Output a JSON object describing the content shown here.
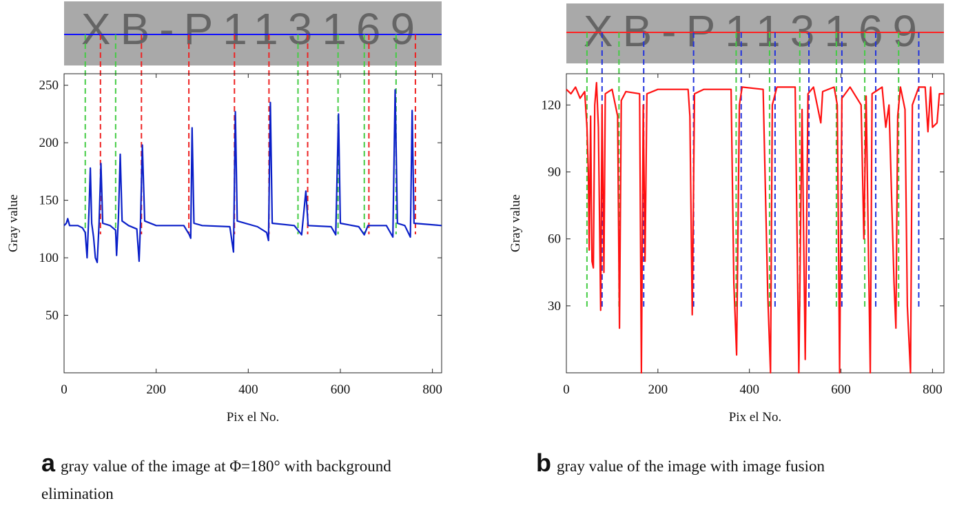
{
  "chart_data": [
    {
      "type": "line",
      "caption_label": "a",
      "caption": "gray value of the image at Φ=180° with background elimination",
      "xlabel": "Pix el No.",
      "ylabel": "Gray value",
      "color": "#0a1fc8",
      "xlim": [
        0,
        820
      ],
      "ylim": [
        0,
        260
      ],
      "xticks": [
        0,
        200,
        400,
        600,
        800
      ],
      "yticks": [
        50,
        100,
        150,
        200,
        250
      ],
      "label_image": {
        "text": "XB-P113169",
        "line_color": "#1010ff"
      },
      "guides": {
        "x": [
          46,
          79,
          112,
          168,
          271,
          370,
          445,
          508,
          529,
          595,
          652,
          662,
          721,
          763
        ],
        "colors": [
          "#44cc44",
          "#ee2222",
          "#44cc44",
          "#ee2222",
          "#ee2222",
          "#ee2222",
          "#ee2222",
          "#44cc44",
          "#ee2222",
          "#44cc44",
          "#44cc44",
          "#ee2222",
          "#44cc44",
          "#ee2222"
        ]
      },
      "x": [
        0,
        5,
        8,
        12,
        30,
        40,
        46,
        50,
        54,
        57,
        60,
        64,
        68,
        72,
        76,
        80,
        84,
        100,
        112,
        114,
        118,
        122,
        126,
        140,
        158,
        163,
        166,
        170,
        175,
        200,
        260,
        272,
        275,
        278,
        282,
        300,
        360,
        368,
        372,
        376,
        420,
        440,
        444,
        448,
        452,
        500,
        512,
        516,
        525,
        530,
        580,
        590,
        596,
        600,
        640,
        652,
        660,
        700,
        714,
        719,
        724,
        740,
        752,
        756,
        760,
        820
      ],
      "values": [
        128,
        130,
        134,
        128,
        128,
        126,
        122,
        100,
        140,
        178,
        130,
        118,
        100,
        96,
        130,
        182,
        130,
        128,
        124,
        102,
        135,
        190,
        132,
        128,
        125,
        97,
        130,
        198,
        132,
        128,
        128,
        120,
        117,
        213,
        130,
        128,
        127,
        105,
        227,
        132,
        127,
        122,
        115,
        235,
        130,
        128,
        122,
        120,
        158,
        128,
        127,
        120,
        225,
        130,
        127,
        120,
        128,
        128,
        118,
        246,
        130,
        128,
        118,
        228,
        130,
        128
      ]
    },
    {
      "type": "line",
      "caption_label": "b",
      "caption": "gray value of the image with image fusion",
      "xlabel": "Pix el No.",
      "ylabel": "Gray value",
      "color": "#ff1010",
      "xlim": [
        0,
        825
      ],
      "ylim": [
        0,
        134
      ],
      "xticks": [
        0,
        200,
        400,
        600,
        800
      ],
      "yticks": [
        30,
        60,
        90,
        120
      ],
      "label_image": {
        "text": "XB-P113169",
        "line_color": "#ff2020"
      },
      "guides": {
        "x": [
          45,
          78,
          115,
          169,
          278,
          371,
          382,
          444,
          456,
          510,
          530,
          590,
          602,
          652,
          676,
          726,
          770
        ],
        "colors": [
          "#44cc44",
          "#2233dd",
          "#44cc44",
          "#2233dd",
          "#2233dd",
          "#44cc44",
          "#2233dd",
          "#44cc44",
          "#2233dd",
          "#44cc44",
          "#2233dd",
          "#44cc44",
          "#2233dd",
          "#44cc44",
          "#2233dd",
          "#44cc44",
          "#2233dd"
        ]
      },
      "x": [
        0,
        10,
        20,
        30,
        40,
        45,
        48,
        50,
        53,
        56,
        59,
        62,
        66,
        70,
        75,
        78,
        82,
        85,
        100,
        112,
        116,
        120,
        130,
        160,
        164,
        168,
        172,
        176,
        200,
        266,
        270,
        275,
        280,
        300,
        360,
        366,
        372,
        378,
        384,
        430,
        440,
        446,
        450,
        460,
        500,
        508,
        515,
        522,
        528,
        540,
        556,
        560,
        585,
        592,
        597,
        602,
        620,
        644,
        650,
        655,
        664,
        668,
        690,
        698,
        705,
        716,
        720,
        724,
        730,
        740,
        745,
        752,
        756,
        770,
        784,
        790,
        796,
        800,
        810,
        815,
        825
      ],
      "values": [
        127,
        125,
        128,
        123,
        126,
        110,
        90,
        55,
        115,
        50,
        47,
        120,
        130,
        110,
        28,
        120,
        45,
        125,
        127,
        115,
        20,
        122,
        126,
        125,
        0,
        120,
        50,
        125,
        127,
        127,
        115,
        26,
        125,
        127,
        127,
        40,
        8,
        120,
        128,
        127,
        35,
        0,
        120,
        128,
        128,
        0,
        118,
        6,
        125,
        128,
        112,
        126,
        128,
        120,
        0,
        123,
        128,
        120,
        60,
        124,
        0,
        125,
        128,
        110,
        120,
        40,
        20,
        115,
        128,
        118,
        30,
        0,
        120,
        128,
        128,
        108,
        128,
        110,
        112,
        125,
        125
      ]
    }
  ]
}
